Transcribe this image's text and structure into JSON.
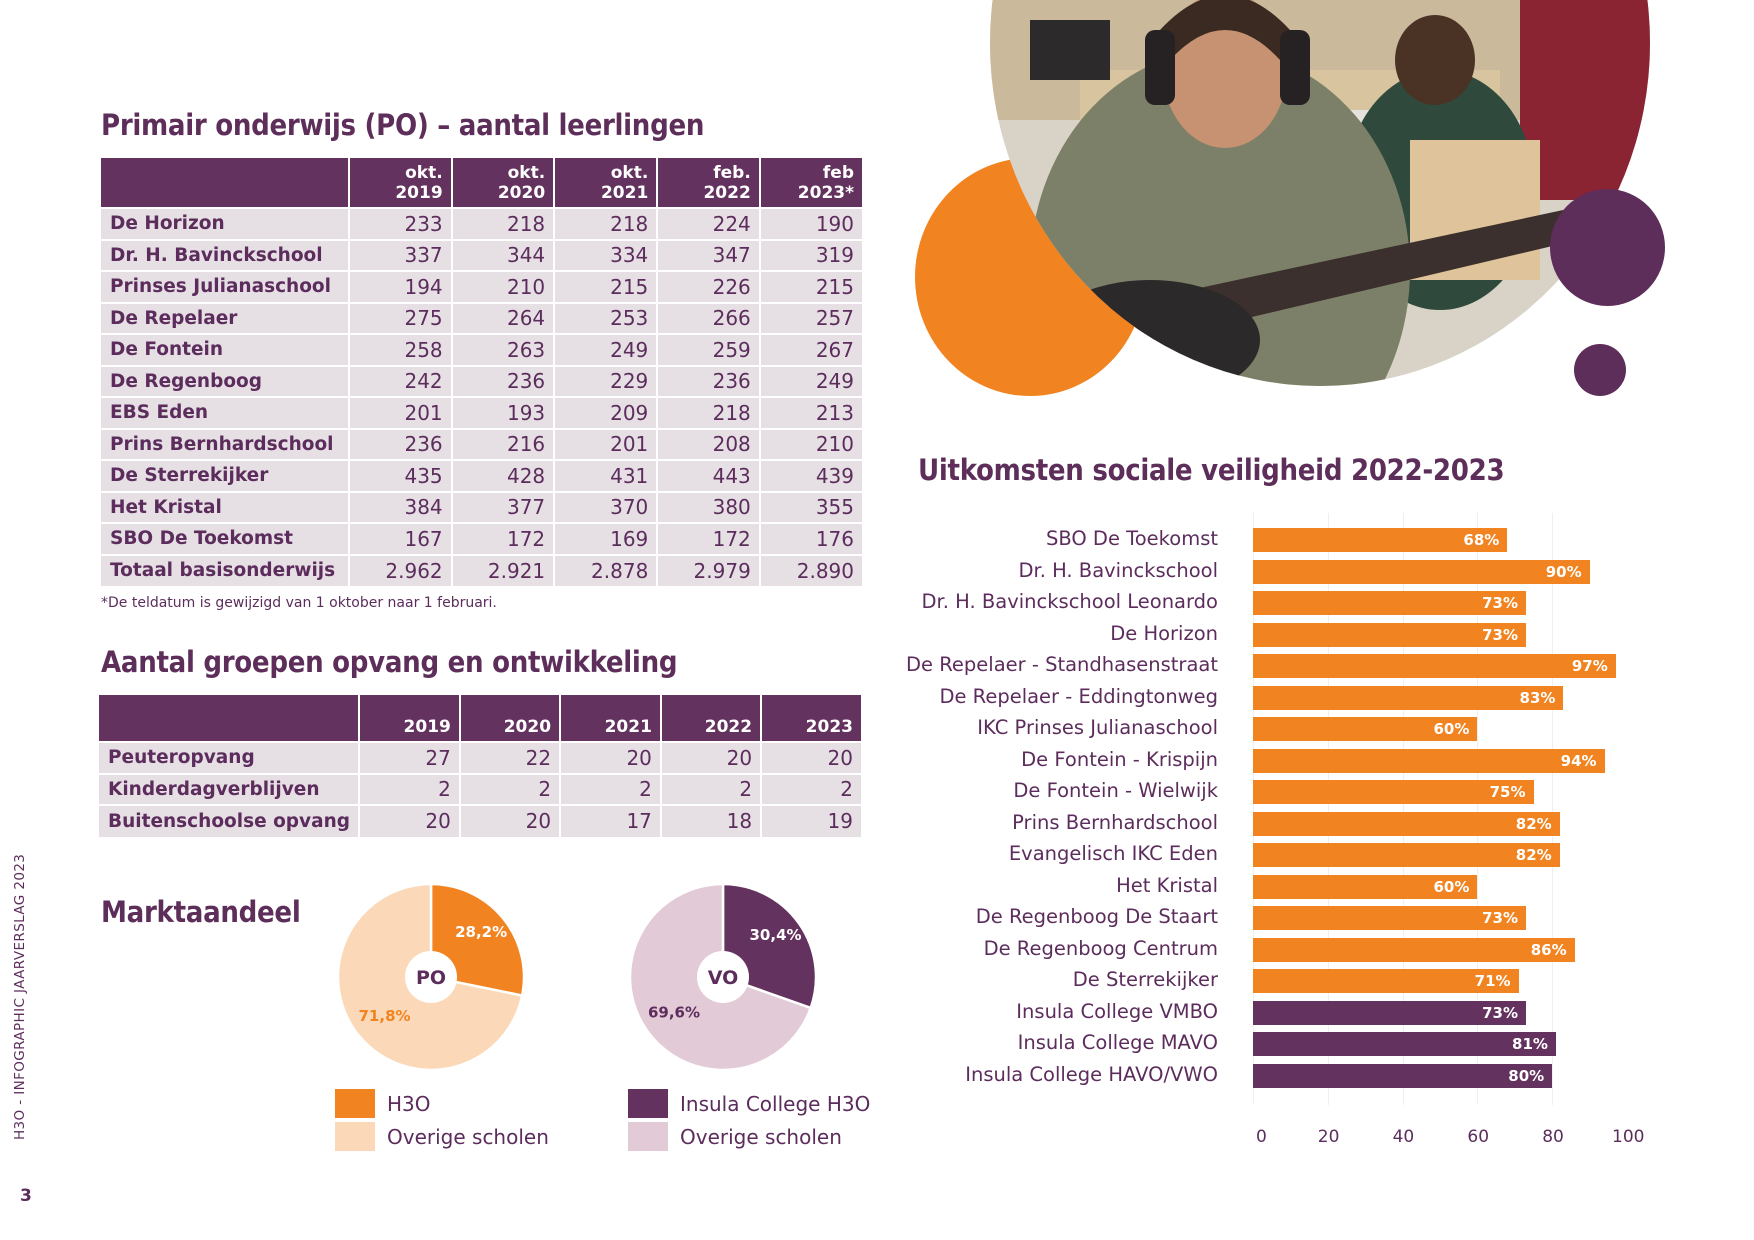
{
  "colors": {
    "purple": "#63325e",
    "orange": "#f18421",
    "light_orange": "#fbd9b8",
    "light_purple": "#e3cad7",
    "table_row": "#e6e0e5",
    "text": "#5c2d5c"
  },
  "po_table": {
    "title": "Primair onderwijs (PO) – aantal leerlingen",
    "headers": [
      "",
      "okt. 2019",
      "okt. 2020",
      "okt. 2021",
      "feb. 2022",
      "feb 2023*"
    ],
    "rows": [
      {
        "name": "De Horizon",
        "values": [
          "233",
          "218",
          "218",
          "224",
          "190"
        ]
      },
      {
        "name": "Dr. H. Bavinckschool",
        "values": [
          "337",
          "344",
          "334",
          "347",
          "319"
        ]
      },
      {
        "name": "Prinses Julianaschool",
        "values": [
          "194",
          "210",
          "215",
          "226",
          "215"
        ]
      },
      {
        "name": "De Repelaer",
        "values": [
          "275",
          "264",
          "253",
          "266",
          "257"
        ]
      },
      {
        "name": "De Fontein",
        "values": [
          "258",
          "263",
          "249",
          "259",
          "267"
        ]
      },
      {
        "name": "De Regenboog",
        "values": [
          "242",
          "236",
          "229",
          "236",
          "249"
        ]
      },
      {
        "name": "EBS Eden",
        "values": [
          "201",
          "193",
          "209",
          "218",
          "213"
        ]
      },
      {
        "name": "Prins Bernhardschool",
        "values": [
          "236",
          "216",
          "201",
          "208",
          "210"
        ]
      },
      {
        "name": "De Sterrekijker",
        "values": [
          "435",
          "428",
          "431",
          "443",
          "439"
        ]
      },
      {
        "name": "Het Kristal",
        "values": [
          "384",
          "377",
          "370",
          "380",
          "355"
        ]
      },
      {
        "name": "SBO De Toekomst",
        "values": [
          "167",
          "172",
          "169",
          "172",
          "176"
        ]
      },
      {
        "name": "Totaal basisonderwijs",
        "values": [
          "2.962",
          "2.921",
          "2.878",
          "2.979",
          "2.890"
        ]
      }
    ],
    "footnote": "*De teldatum is gewijzigd van 1 oktober naar 1 februari."
  },
  "groups_table": {
    "title": "Aantal groepen opvang en ontwikkeling",
    "headers": [
      "",
      "2019",
      "2020",
      "2021",
      "2022",
      "2023"
    ],
    "rows": [
      {
        "name": "Peuteropvang",
        "values": [
          "27",
          "22",
          "20",
          "20",
          "20"
        ]
      },
      {
        "name": "Kinderdagverblijven",
        "values": [
          "2",
          "2",
          "2",
          "2",
          "2"
        ]
      },
      {
        "name": "Buitenschoolse opvang",
        "values": [
          "20",
          "20",
          "17",
          "18",
          "19"
        ]
      }
    ]
  },
  "market": {
    "title": "Marktaandeel",
    "legend_po": [
      "H3O",
      "Overige scholen"
    ],
    "legend_vo": [
      "Insula College H3O",
      "Overige scholen"
    ]
  },
  "sidebar": {
    "text": "H3O  -  INFOGRAPHIC JAARVERSLAG 2023",
    "page_number": "3"
  },
  "photo": {
    "description": "Student with headphones playing electric guitar in a music classroom"
  },
  "chart_data": [
    {
      "type": "pie",
      "title": "PO",
      "center_label": "PO",
      "slices": [
        {
          "label": "H3O",
          "value": 28.2,
          "display": "28,2%",
          "color": "#f18421"
        },
        {
          "label": "Overige scholen",
          "value": 71.8,
          "display": "71,8%",
          "color": "#fbd9b8"
        }
      ]
    },
    {
      "type": "pie",
      "title": "VO",
      "center_label": "VO",
      "slices": [
        {
          "label": "Insula College H3O",
          "value": 30.4,
          "display": "30,4%",
          "color": "#63325e"
        },
        {
          "label": "Overige scholen",
          "value": 69.6,
          "display": "69,6%",
          "color": "#e3cad7"
        }
      ]
    },
    {
      "type": "bar",
      "orientation": "horizontal",
      "title": "Uitkomsten sociale veiligheid 2022-2023",
      "xlabel": "",
      "ylabel": "",
      "xlim": [
        0,
        100
      ],
      "xticks": [
        "0",
        "20",
        "40",
        "60",
        "80",
        "100"
      ],
      "grid": true,
      "categories": [
        "SBO De Toekomst",
        "Dr. H. Bavinckschool",
        "Dr. H. Bavinckschool Leonardo",
        "De Horizon",
        "De Repelaer - Standhasenstraat",
        "De Repelaer - Eddingtonweg",
        "IKC Prinses Julianaschool",
        "De Fontein - Krispijn",
        "De Fontein - Wielwijk",
        "Prins Bernhardschool",
        "Evangelisch IKC Eden",
        "Het Kristal",
        "De Regenboog De Staart",
        "De Regenboog Centrum",
        "De Sterrekijker",
        "Insula College VMBO",
        "Insula College MAVO",
        "Insula College HAVO/VWO"
      ],
      "values": [
        68,
        90,
        73,
        73,
        97,
        83,
        60,
        94,
        75,
        82,
        82,
        60,
        73,
        86,
        71,
        73,
        81,
        80
      ],
      "labels": [
        "68%",
        "90%",
        "73%",
        "73%",
        "97%",
        "83%",
        "60%",
        "94%",
        "75%",
        "82%",
        "82%",
        "60%",
        "73%",
        "86%",
        "71%",
        "73%",
        "81%",
        "80%"
      ],
      "groups": [
        "po",
        "po",
        "po",
        "po",
        "po",
        "po",
        "po",
        "po",
        "po",
        "po",
        "po",
        "po",
        "po",
        "po",
        "po",
        "vo",
        "vo",
        "vo"
      ],
      "group_colors": {
        "po": "#f18421",
        "vo": "#63325e"
      }
    }
  ]
}
